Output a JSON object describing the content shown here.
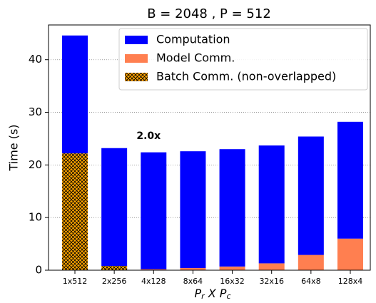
{
  "chart_data": {
    "type": "stacked_bar",
    "title": "B = 2048 ,  P = 512",
    "ylabel": "Time (s)",
    "xlabel": [
      "P",
      "r",
      " X ",
      "P",
      "c"
    ],
    "categories": [
      "1x512",
      "2x256",
      "4x128",
      "8x64",
      "16x32",
      "32x16",
      "64x8",
      "128x4"
    ],
    "series": [
      {
        "name": "Model Comm.",
        "color": "#ff7f50",
        "hatch": false,
        "values": [
          0,
          0,
          0.2,
          0.4,
          0.7,
          1.3,
          2.9,
          6.0
        ]
      },
      {
        "name": "Batch Comm. (non-overlapped)",
        "color": "#ffa500",
        "hatch": true,
        "values": [
          22.2,
          0.8,
          0,
          0,
          0,
          0,
          0,
          0
        ]
      },
      {
        "name": "Computation",
        "color": "#0000ff",
        "hatch": false,
        "values": [
          22.4,
          22.4,
          22.2,
          22.2,
          22.3,
          22.4,
          22.5,
          22.2
        ]
      }
    ],
    "legend_order": [
      2,
      0,
      1
    ],
    "annotation": {
      "text": "2.0x",
      "category": 2,
      "y": 25.5
    },
    "ylim": [
      0,
      46.6
    ],
    "yticks": [
      0,
      10,
      20,
      30,
      40
    ],
    "grid": true,
    "legend": "upper right"
  }
}
